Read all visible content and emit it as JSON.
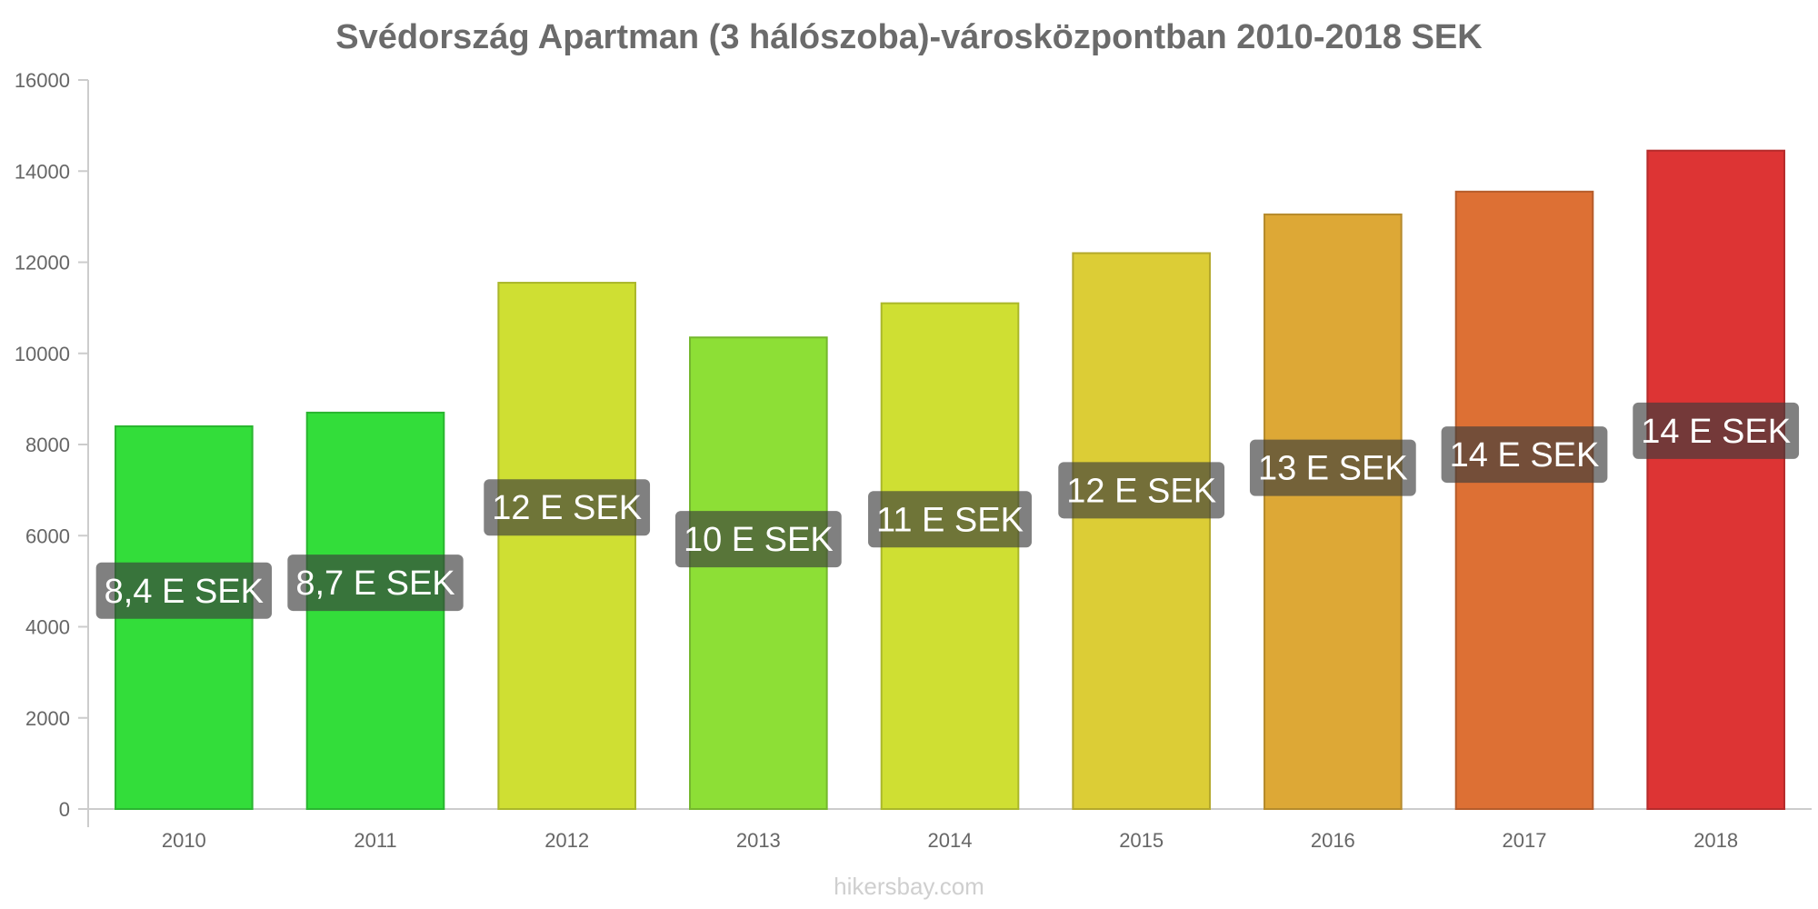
{
  "chart_data": {
    "type": "bar",
    "title": "Svédország Apartman (3 hálószoba)-városközpontban 2010-2018 SEK",
    "xlabel": "",
    "ylabel": "",
    "categories": [
      "2010",
      "2011",
      "2012",
      "2013",
      "2014",
      "2015",
      "2016",
      "2017",
      "2018"
    ],
    "values": [
      8400,
      8700,
      11550,
      10350,
      11100,
      12200,
      13050,
      13550,
      14450
    ],
    "data_labels": [
      "8,4 E SEK",
      "8,7 E SEK",
      "12 E SEK",
      "10 E SEK",
      "11 E SEK",
      "12 E SEK",
      "13 E SEK",
      "14 E SEK",
      "14 E SEK"
    ],
    "bar_colors": [
      "#33dd3a",
      "#33dd3a",
      "#cfdf33",
      "#8ddf36",
      "#cfdf33",
      "#dccd36",
      "#dda836",
      "#dd7034",
      "#dd3434"
    ],
    "ylim": [
      0,
      16000
    ],
    "yticks": [
      0,
      2000,
      4000,
      6000,
      8000,
      10000,
      12000,
      14000,
      16000
    ],
    "grid": false,
    "legend": "none"
  },
  "watermark": "hikersbay.com"
}
